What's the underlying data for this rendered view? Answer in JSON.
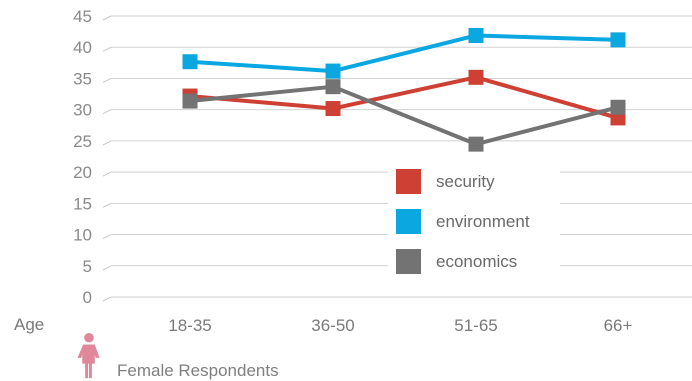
{
  "chart_data": {
    "type": "line",
    "x_axis_label": "Age",
    "categories": [
      "18-35",
      "36-50",
      "51-65",
      "66+"
    ],
    "ylim": [
      0,
      45
    ],
    "yticks": [
      0,
      5,
      10,
      15,
      20,
      25,
      30,
      35,
      40,
      45
    ],
    "grid": true,
    "legend_position": "bottom-right",
    "series": [
      {
        "name": "security",
        "color": "#cf4034",
        "values": [
          32.5,
          30.5,
          35.5,
          29
        ]
      },
      {
        "name": "environment",
        "color": "#0aa7e1",
        "values": [
          38,
          36.5,
          42.2,
          41.5
        ]
      },
      {
        "name": "economics",
        "color": "#737373",
        "values": [
          31.7,
          34,
          24.8,
          30.7
        ]
      }
    ]
  },
  "footer": {
    "icon": "female-person-icon",
    "icon_color": "#e0889a",
    "label": "Female Respondents"
  }
}
